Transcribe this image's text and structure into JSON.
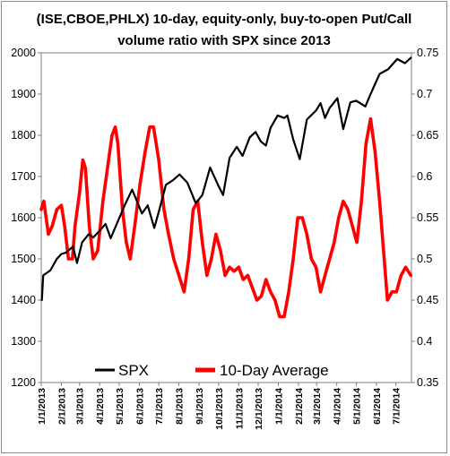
{
  "chart_data": {
    "type": "line",
    "title_line1": "(ISE,CBOE,PHLX) 10-day, equity-only, buy-to-open Put/Call",
    "title_line2": "volume ratio with SPX since 2013",
    "left_axis": {
      "min": 1200,
      "max": 2000,
      "step": 100,
      "ticks": [
        "1200",
        "1300",
        "1400",
        "1500",
        "1600",
        "1700",
        "1800",
        "1900",
        "2000"
      ]
    },
    "right_axis": {
      "min": 0.35,
      "max": 0.75,
      "ticks": [
        "0.35",
        "0.4",
        "0.45",
        "0.5",
        "0.55",
        "0.6",
        "0.65",
        "0.7",
        "0.75"
      ]
    },
    "x_axis": {
      "start": "2013-01-01",
      "end": "2014-07-25",
      "tick_labels": [
        "1/1/2013",
        "2/1/2013",
        "3/1/2013",
        "4/1/2013",
        "5/1/2013",
        "6/1/2013",
        "7/1/2013",
        "8/1/2013",
        "9/1/2013",
        "10/1/2013",
        "11/1/2013",
        "12/1/2013",
        "1/1/2014",
        "2/1/2014",
        "3/1/2014",
        "4/1/2014",
        "5/1/2014",
        "6/1/2014",
        "7/1/2014"
      ]
    },
    "grid": false,
    "legend": {
      "placement": "bottom",
      "entries": [
        "SPX",
        "10-Day Average"
      ]
    },
    "series": [
      {
        "name": "SPX",
        "axis": "left",
        "color": "#000000",
        "points": [
          [
            "2013-01-02",
            1400
          ],
          [
            "2013-01-04",
            1460
          ],
          [
            "2013-01-15",
            1472
          ],
          [
            "2013-01-25",
            1500
          ],
          [
            "2013-02-01",
            1512
          ],
          [
            "2013-02-08",
            1515
          ],
          [
            "2013-02-19",
            1530
          ],
          [
            "2013-02-25",
            1490
          ],
          [
            "2013-03-05",
            1540
          ],
          [
            "2013-03-15",
            1560
          ],
          [
            "2013-03-22",
            1552
          ],
          [
            "2013-04-02",
            1570
          ],
          [
            "2013-04-10",
            1585
          ],
          [
            "2013-04-18",
            1550
          ],
          [
            "2013-04-30",
            1595
          ],
          [
            "2013-05-10",
            1632
          ],
          [
            "2013-05-21",
            1668
          ],
          [
            "2013-05-31",
            1630
          ],
          [
            "2013-06-05",
            1610
          ],
          [
            "2013-06-14",
            1630
          ],
          [
            "2013-06-24",
            1575
          ],
          [
            "2013-07-01",
            1614
          ],
          [
            "2013-07-12",
            1680
          ],
          [
            "2013-07-22",
            1690
          ],
          [
            "2013-08-02",
            1705
          ],
          [
            "2013-08-14",
            1685
          ],
          [
            "2013-08-27",
            1635
          ],
          [
            "2013-09-06",
            1655
          ],
          [
            "2013-09-18",
            1722
          ],
          [
            "2013-09-30",
            1680
          ],
          [
            "2013-10-08",
            1655
          ],
          [
            "2013-10-18",
            1745
          ],
          [
            "2013-10-29",
            1772
          ],
          [
            "2013-11-07",
            1750
          ],
          [
            "2013-11-18",
            1795
          ],
          [
            "2013-11-27",
            1808
          ],
          [
            "2013-12-05",
            1785
          ],
          [
            "2013-12-13",
            1775
          ],
          [
            "2013-12-20",
            1818
          ],
          [
            "2013-12-31",
            1848
          ],
          [
            "2014-01-10",
            1842
          ],
          [
            "2014-01-15",
            1848
          ],
          [
            "2014-01-24",
            1790
          ],
          [
            "2014-02-03",
            1742
          ],
          [
            "2014-02-14",
            1838
          ],
          [
            "2014-02-28",
            1860
          ],
          [
            "2014-03-07",
            1878
          ],
          [
            "2014-03-14",
            1842
          ],
          [
            "2014-03-21",
            1866
          ],
          [
            "2014-04-02",
            1890
          ],
          [
            "2014-04-11",
            1815
          ],
          [
            "2014-04-22",
            1880
          ],
          [
            "2014-05-01",
            1884
          ],
          [
            "2014-05-15",
            1870
          ],
          [
            "2014-05-23",
            1900
          ],
          [
            "2014-06-06",
            1949
          ],
          [
            "2014-06-19",
            1960
          ],
          [
            "2014-07-03",
            1985
          ],
          [
            "2014-07-15",
            1975
          ],
          [
            "2014-07-24",
            1988
          ]
        ]
      },
      {
        "name": "10-Day Average",
        "axis": "right",
        "color": "#ff0000",
        "points": [
          [
            "2013-01-01",
            0.56
          ],
          [
            "2013-01-05",
            0.57
          ],
          [
            "2013-01-12",
            0.53
          ],
          [
            "2013-01-18",
            0.54
          ],
          [
            "2013-01-25",
            0.56
          ],
          [
            "2013-02-01",
            0.565
          ],
          [
            "2013-02-06",
            0.54
          ],
          [
            "2013-02-12",
            0.5
          ],
          [
            "2013-02-18",
            0.5
          ],
          [
            "2013-02-22",
            0.54
          ],
          [
            "2013-03-01",
            0.58
          ],
          [
            "2013-03-06",
            0.62
          ],
          [
            "2013-03-10",
            0.61
          ],
          [
            "2013-03-16",
            0.54
          ],
          [
            "2013-03-22",
            0.5
          ],
          [
            "2013-03-29",
            0.51
          ],
          [
            "2013-04-06",
            0.57
          ],
          [
            "2013-04-13",
            0.61
          ],
          [
            "2013-04-20",
            0.65
          ],
          [
            "2013-04-25",
            0.66
          ],
          [
            "2013-04-29",
            0.64
          ],
          [
            "2013-05-06",
            0.56
          ],
          [
            "2013-05-12",
            0.52
          ],
          [
            "2013-05-18",
            0.5
          ],
          [
            "2013-05-25",
            0.54
          ],
          [
            "2013-06-02",
            0.59
          ],
          [
            "2013-06-10",
            0.63
          ],
          [
            "2013-06-17",
            0.66
          ],
          [
            "2013-06-23",
            0.66
          ],
          [
            "2013-07-01",
            0.62
          ],
          [
            "2013-07-09",
            0.56
          ],
          [
            "2013-07-16",
            0.53
          ],
          [
            "2013-07-24",
            0.5
          ],
          [
            "2013-08-01",
            0.48
          ],
          [
            "2013-08-09",
            0.46
          ],
          [
            "2013-08-16",
            0.5
          ],
          [
            "2013-08-23",
            0.56
          ],
          [
            "2013-08-30",
            0.57
          ],
          [
            "2013-09-06",
            0.52
          ],
          [
            "2013-09-13",
            0.48
          ],
          [
            "2013-09-20",
            0.5
          ],
          [
            "2013-09-27",
            0.53
          ],
          [
            "2013-10-04",
            0.51
          ],
          [
            "2013-10-11",
            0.48
          ],
          [
            "2013-10-18",
            0.49
          ],
          [
            "2013-10-25",
            0.485
          ],
          [
            "2013-11-01",
            0.49
          ],
          [
            "2013-11-08",
            0.475
          ],
          [
            "2013-11-15",
            0.48
          ],
          [
            "2013-11-22",
            0.465
          ],
          [
            "2013-11-29",
            0.45
          ],
          [
            "2013-12-06",
            0.455
          ],
          [
            "2013-12-13",
            0.475
          ],
          [
            "2013-12-20",
            0.46
          ],
          [
            "2013-12-27",
            0.45
          ],
          [
            "2014-01-03",
            0.43
          ],
          [
            "2014-01-10",
            0.43
          ],
          [
            "2014-01-17",
            0.46
          ],
          [
            "2014-01-24",
            0.5
          ],
          [
            "2014-01-31",
            0.55
          ],
          [
            "2014-02-07",
            0.55
          ],
          [
            "2014-02-14",
            0.53
          ],
          [
            "2014-02-21",
            0.5
          ],
          [
            "2014-02-28",
            0.49
          ],
          [
            "2014-03-07",
            0.46
          ],
          [
            "2014-03-14",
            0.48
          ],
          [
            "2014-03-21",
            0.5
          ],
          [
            "2014-03-28",
            0.52
          ],
          [
            "2014-04-04",
            0.55
          ],
          [
            "2014-04-11",
            0.57
          ],
          [
            "2014-04-18",
            0.56
          ],
          [
            "2014-04-25",
            0.54
          ],
          [
            "2014-05-02",
            0.52
          ],
          [
            "2014-05-09",
            0.57
          ],
          [
            "2014-05-16",
            0.64
          ],
          [
            "2014-05-23",
            0.67
          ],
          [
            "2014-05-30",
            0.63
          ],
          [
            "2014-06-06",
            0.57
          ],
          [
            "2014-06-13",
            0.5
          ],
          [
            "2014-06-18",
            0.45
          ],
          [
            "2014-06-25",
            0.46
          ],
          [
            "2014-07-02",
            0.46
          ],
          [
            "2014-07-09",
            0.48
          ],
          [
            "2014-07-16",
            0.49
          ],
          [
            "2014-07-24",
            0.48
          ]
        ]
      }
    ]
  }
}
